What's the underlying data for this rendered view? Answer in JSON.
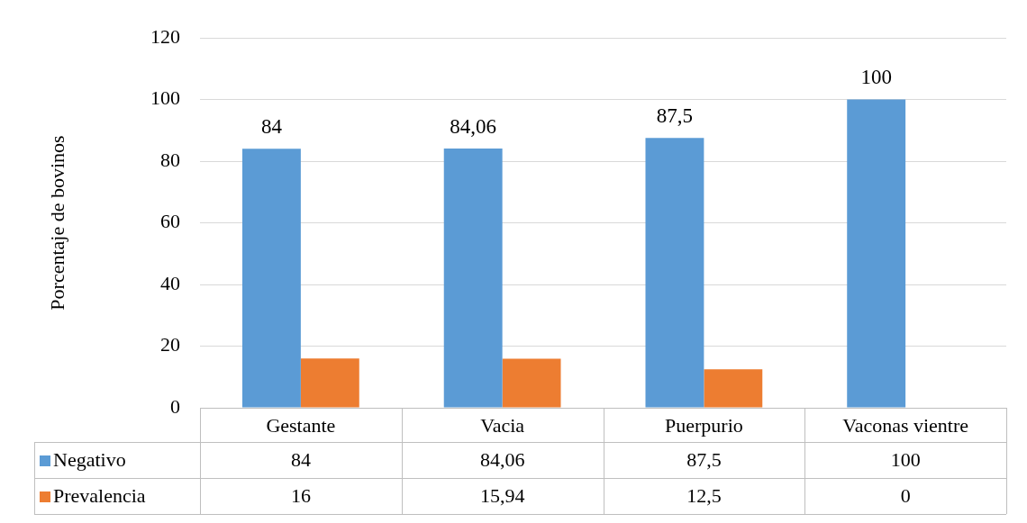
{
  "chart_data": {
    "type": "bar",
    "ylabel": "Porcentaje de bovinos",
    "categories": [
      "Gestante",
      "Vacia",
      "Puerpurio",
      "Vaconas vientre"
    ],
    "series": [
      {
        "name": "Negativo",
        "color": "#5b9bd5",
        "values": [
          84,
          84.06,
          87.5,
          100
        ],
        "value_labels": [
          "84",
          "84,06",
          "87,5",
          "100"
        ]
      },
      {
        "name": "Prevalencia",
        "color": "#ed7d31",
        "values": [
          16,
          15.94,
          12.5,
          0
        ],
        "value_labels": [
          "16",
          "15,94",
          "12,5",
          "0"
        ]
      }
    ],
    "ylim": [
      0,
      120
    ],
    "yticks": [
      0,
      20,
      40,
      60,
      80,
      100,
      120
    ],
    "grid": "y",
    "legend": "bottom"
  }
}
